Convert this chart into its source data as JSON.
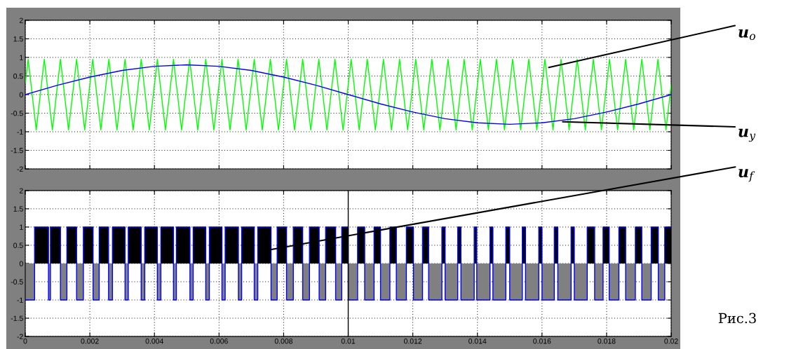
{
  "chart_data": [
    {
      "type": "line",
      "xlim": [
        0,
        0.02
      ],
      "ylim": [
        -2,
        2
      ],
      "xticks": [
        0,
        0.002,
        0.004,
        0.006,
        0.008,
        0.01,
        0.012,
        0.014,
        0.016,
        0.018,
        0.02
      ],
      "yticks": [
        -2,
        -1.5,
        -1,
        -0.5,
        0,
        0.5,
        1,
        1.5,
        2
      ],
      "tick_labels": "y",
      "grid": true,
      "series": [
        {
          "color": "#00ff00",
          "x": [
            0,
            9e-05,
            0.00034,
            0.00059,
            0.00084,
            0.00109,
            0.00134,
            0.00159,
            0.00184,
            0.00209,
            0.00234,
            0.00259,
            0.00284,
            0.00309,
            0.00334,
            0.00359,
            0.00384,
            0.00409,
            0.00434,
            0.00459,
            0.00484,
            0.00509,
            0.00534,
            0.00559,
            0.00584,
            0.00609,
            0.00634,
            0.00659,
            0.00684,
            0.00709,
            0.00734,
            0.00759,
            0.00784,
            0.00809,
            0.00834,
            0.00859,
            0.00884,
            0.00909,
            0.00934,
            0.00959,
            0.00984,
            0.01009,
            0.01034,
            0.01059,
            0.01084,
            0.01109,
            0.01134,
            0.01159,
            0.01184,
            0.01209,
            0.01234,
            0.01259,
            0.01284,
            0.01309,
            0.01334,
            0.01359,
            0.01384,
            0.01409,
            0.01434,
            0.01459,
            0.01484,
            0.01509,
            0.01534,
            0.01559,
            0.01584,
            0.01609,
            0.01634,
            0.01659,
            0.01684,
            0.01709,
            0.01734,
            0.01759,
            0.01784,
            0.01809,
            0.01834,
            0.01859,
            0.01884,
            0.01909,
            0.01934,
            0.01959,
            0.01984,
            0.02
          ],
          "values": [
            0.3,
            0.95,
            -0.95,
            0.95,
            -0.95,
            0.95,
            -0.95,
            0.95,
            -0.95,
            0.95,
            -0.95,
            0.95,
            -0.95,
            0.95,
            -0.95,
            0.95,
            -0.95,
            0.95,
            -0.95,
            0.95,
            -0.95,
            0.95,
            -0.95,
            0.95,
            -0.95,
            0.95,
            -0.95,
            0.95,
            -0.95,
            0.95,
            -0.95,
            0.95,
            -0.95,
            0.95,
            -0.95,
            0.95,
            -0.95,
            0.95,
            -0.95,
            0.95,
            -0.95,
            0.95,
            -0.95,
            0.95,
            -0.95,
            0.95,
            -0.95,
            0.95,
            -0.95,
            0.95,
            -0.95,
            0.95,
            -0.95,
            0.95,
            -0.95,
            0.95,
            -0.95,
            0.95,
            -0.95,
            0.95,
            -0.95,
            0.95,
            -0.95,
            0.95,
            -0.95,
            0.95,
            -0.95,
            0.95,
            -0.95,
            0.95,
            -0.95,
            0.95,
            -0.95,
            0.95,
            -0.95,
            0.95,
            -0.95,
            0.95,
            -0.95,
            0.95,
            -0.95,
            0.27
          ]
        },
        {
          "color": "#0000ff",
          "x": [
            0,
            0.001,
            0.002,
            0.003,
            0.004,
            0.005,
            0.006,
            0.007,
            0.008,
            0.009,
            0.01,
            0.011,
            0.012,
            0.013,
            0.014,
            0.015,
            0.016,
            0.017,
            0.018,
            0.019,
            0.02
          ],
          "values": [
            0,
            0.25,
            0.47,
            0.65,
            0.76,
            0.8,
            0.76,
            0.65,
            0.47,
            0.25,
            0,
            -0.25,
            -0.47,
            -0.65,
            -0.76,
            -0.8,
            -0.76,
            -0.65,
            -0.47,
            -0.25,
            0
          ]
        }
      ],
      "annotations": [
        {
          "text": "u$_{o}$",
          "x": 0.01621,
          "y": 0.73
        },
        {
          "text": "u$_{y}$",
          "x": 0.01664,
          "y": -0.73
        }
      ]
    },
    {
      "type": "step",
      "xlim": [
        0,
        0.02
      ],
      "ylim": [
        -2,
        2
      ],
      "xticks": [
        0,
        0.002,
        0.004,
        0.006,
        0.008,
        0.01,
        0.012,
        0.014,
        0.016,
        0.018,
        0.02
      ],
      "yticks": [
        -2,
        -1.5,
        -1,
        -0.5,
        0,
        0.5,
        1,
        1.5,
        2
      ],
      "grid": true,
      "x": [
        0,
        0.00029,
        0.00072,
        0.00078,
        0.00109,
        0.00129,
        0.00159,
        0.0018,
        0.0021,
        0.00229,
        0.00258,
        0.0027,
        0.00309,
        0.00319,
        0.00359,
        0.0037,
        0.00409,
        0.0042,
        0.00459,
        0.00468,
        0.0051,
        0.0052,
        0.00559,
        0.0057,
        0.00609,
        0.00619,
        0.0066,
        0.0067,
        0.00709,
        0.0072,
        0.00761,
        0.0078,
        0.00809,
        0.0083,
        0.00859,
        0.0088,
        0.0091,
        0.0093,
        0.00961,
        0.0098,
        0.01,
        0.01029,
        0.01051,
        0.0108,
        0.011,
        0.01129,
        0.01149,
        0.0118,
        0.01202,
        0.0123,
        0.01249,
        0.0129,
        0.013,
        0.01339,
        0.01349,
        0.0139,
        0.01398,
        0.01439,
        0.01448,
        0.01488,
        0.015,
        0.01539,
        0.01549,
        0.0159,
        0.016,
        0.01638,
        0.01649,
        0.0169,
        0.017,
        0.0174,
        0.01763,
        0.01789,
        0.01808,
        0.01838,
        0.01859,
        0.01889,
        0.01909,
        0.01938,
        0.0196,
        0.0198,
        0.02
      ],
      "series": [
        {
          "type": "area",
          "color": "#000000",
          "values": [
            0,
            1,
            0,
            1,
            0,
            1,
            0,
            1,
            0,
            1,
            0,
            1,
            0,
            1,
            0,
            1,
            0,
            1,
            0,
            1,
            0,
            1,
            0,
            1,
            0,
            1,
            0,
            1,
            0,
            1,
            0,
            1,
            0,
            1,
            0,
            1,
            0,
            1,
            0,
            1,
            0,
            1,
            0,
            1,
            0,
            1,
            0,
            1,
            0,
            1,
            0,
            1,
            0,
            1,
            0,
            1,
            0,
            1,
            0,
            1,
            0,
            1,
            0,
            1,
            0,
            1,
            0,
            1,
            0,
            1,
            0,
            1,
            0,
            1,
            0,
            1,
            0,
            1,
            0,
            1,
            1
          ]
        },
        {
          "type": "area",
          "color": "#808080",
          "values": [
            -1,
            0,
            -1,
            0,
            -1,
            0,
            -1,
            0,
            -1,
            0,
            -1,
            0,
            -1,
            0,
            -1,
            0,
            -1,
            0,
            -1,
            0,
            -1,
            0,
            -1,
            0,
            -1,
            0,
            -1,
            0,
            -1,
            0,
            -1,
            0,
            -1,
            0,
            -1,
            0,
            -1,
            0,
            -1,
            0,
            -1,
            0,
            -1,
            0,
            -1,
            0,
            -1,
            0,
            -1,
            0,
            -1,
            0,
            -1,
            0,
            -1,
            0,
            -1,
            0,
            -1,
            0,
            -1,
            0,
            -1,
            0,
            -1,
            0,
            -1,
            0,
            -1,
            0,
            -1,
            0,
            -1,
            0,
            -1,
            0,
            -1,
            0,
            -1,
            0,
            0
          ]
        },
        {
          "color": "#0000ff",
          "values": [
            -1,
            1,
            -1,
            1,
            -1,
            1,
            -1,
            1,
            -1,
            1,
            -1,
            1,
            -1,
            1,
            -1,
            1,
            -1,
            1,
            -1,
            1,
            -1,
            1,
            -1,
            1,
            -1,
            1,
            -1,
            1,
            -1,
            1,
            -1,
            1,
            -1,
            1,
            -1,
            1,
            -1,
            1,
            -1,
            1,
            -1,
            1,
            -1,
            1,
            -1,
            1,
            -1,
            1,
            -1,
            1,
            -1,
            1,
            -1,
            1,
            -1,
            1,
            -1,
            1,
            -1,
            1,
            -1,
            1,
            -1,
            1,
            -1,
            1,
            -1,
            1,
            -1,
            1,
            -1,
            1,
            -1,
            1,
            -1,
            1,
            -1,
            1,
            -1,
            1,
            1
          ]
        }
      ],
      "ref_lines": [
        {
          "axis": "x",
          "value": 0.01,
          "color": "#000000"
        }
      ],
      "annotations": [
        {
          "text": "u$_{f}$",
          "x": 0.00759,
          "y": 0.38
        },
        "Рис.3"
      ]
    }
  ]
}
